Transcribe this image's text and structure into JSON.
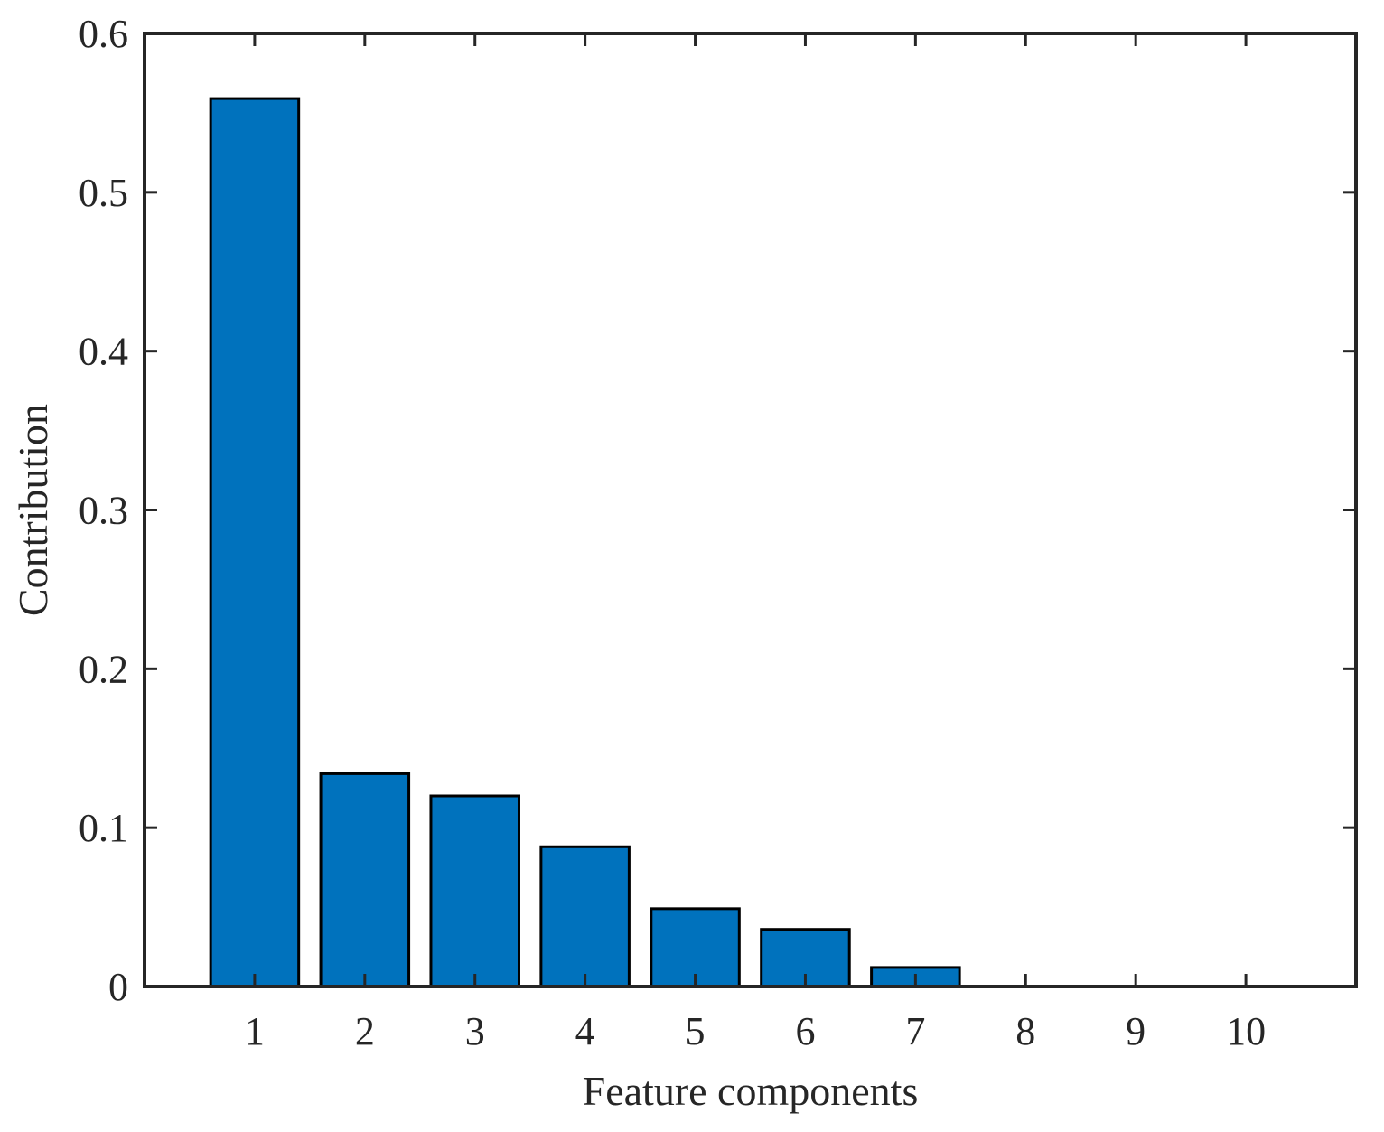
{
  "chart_data": {
    "type": "bar",
    "title": "",
    "xlabel": "Feature components",
    "ylabel": "Contribution",
    "categories": [
      "1",
      "2",
      "3",
      "4",
      "5",
      "6",
      "7",
      "8",
      "9",
      "10"
    ],
    "values": [
      0.559,
      0.134,
      0.12,
      0.088,
      0.049,
      0.036,
      0.012,
      0,
      0,
      0
    ],
    "ylim": [
      0,
      0.6
    ],
    "xlim": [
      0,
      11
    ],
    "yticks": [
      0,
      0.1,
      0.2,
      0.3,
      0.4,
      0.5,
      0.6
    ],
    "ytick_labels": [
      "0",
      "0.1",
      "0.2",
      "0.3",
      "0.4",
      "0.5",
      "0.6"
    ],
    "grid": false,
    "colors": {
      "bar": "#0072BD",
      "bar_edge": "#000000",
      "axis": "#262626"
    }
  }
}
